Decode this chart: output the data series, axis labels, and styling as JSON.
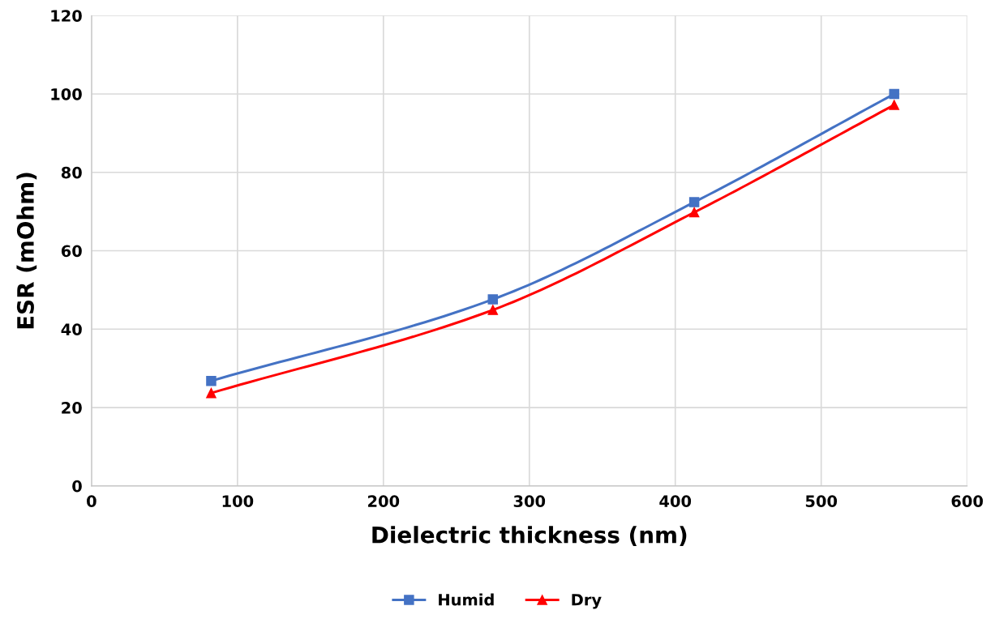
{
  "chart_data": {
    "type": "line",
    "xlabel": "Dielectric thickness (nm)",
    "ylabel": "ESR (mOhm)",
    "x": [
      82,
      275,
      413,
      550
    ],
    "series": [
      {
        "name": "Humid",
        "color": "#4472c4",
        "marker": "square",
        "values": [
          26.8,
          47.6,
          72.4,
          100
        ]
      },
      {
        "name": "Dry",
        "color": "#ff0000",
        "marker": "triangle",
        "values": [
          23.7,
          44.9,
          69.8,
          97.2
        ]
      }
    ],
    "xlim": [
      0,
      600
    ],
    "xticks": [
      0,
      100,
      200,
      300,
      400,
      500,
      600
    ],
    "ylim": [
      0,
      120
    ],
    "yticks": [
      0,
      20,
      40,
      60,
      80,
      100,
      120
    ],
    "grid": true,
    "legend": "bottom",
    "line_style": "solid"
  }
}
